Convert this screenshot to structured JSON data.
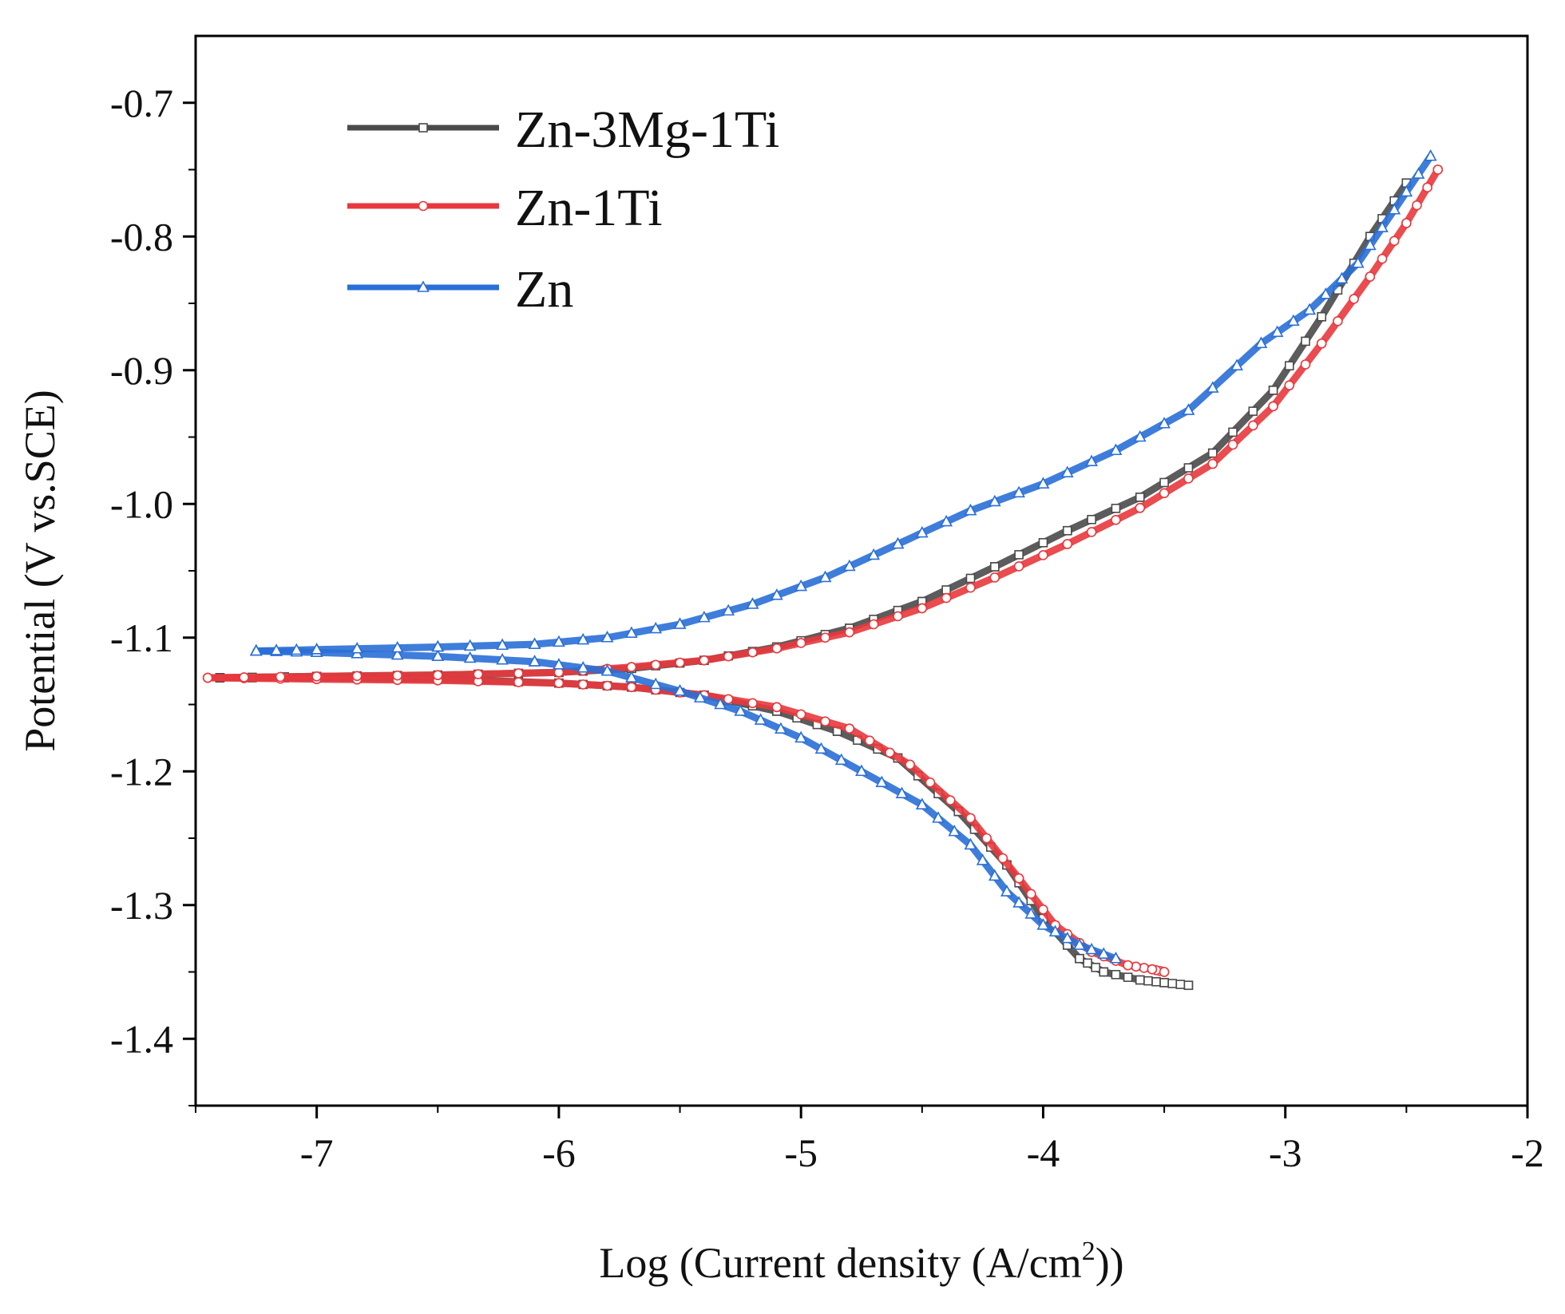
{
  "chart_data": {
    "type": "scatter",
    "xlabel_main": "Log (Current density  (A/cm",
    "xlabel_sup": "2",
    "xlabel_end": "))",
    "ylabel": "Potential (V vs.SCE)",
    "xlim": [
      -7.5,
      -2
    ],
    "ylim": [
      -1.45,
      -0.65
    ],
    "xticks": [
      -7,
      -6,
      -5,
      -4,
      -3,
      -2
    ],
    "xtick_labels": [
      "-7",
      "-6",
      "-5",
      "-4",
      "-3",
      "-2"
    ],
    "yticks": [
      -0.7,
      -0.8,
      -0.9,
      -1.0,
      -1.1,
      -1.2,
      -1.3,
      -1.4
    ],
    "ytick_labels": [
      "-0.7",
      "-0.8",
      "-0.9",
      "-1.0",
      "-1.1",
      "-1.2",
      "-1.3",
      "-1.4"
    ],
    "grid": false,
    "legend_position": "top-left",
    "series": [
      {
        "name": "Zn-3Mg-1Ti",
        "color": "#4a4a4a",
        "marker": "square",
        "cathodic": [
          [
            -3.4,
            -1.36
          ],
          [
            -3.5,
            -1.358
          ],
          [
            -3.6,
            -1.356
          ],
          [
            -3.75,
            -1.35
          ],
          [
            -3.85,
            -1.34
          ],
          [
            -4.0,
            -1.31
          ],
          [
            -4.15,
            -1.27
          ],
          [
            -4.35,
            -1.23
          ],
          [
            -4.6,
            -1.19
          ],
          [
            -4.85,
            -1.17
          ],
          [
            -5.1,
            -1.155
          ],
          [
            -5.4,
            -1.143
          ],
          [
            -5.7,
            -1.137
          ],
          [
            -6.0,
            -1.134
          ],
          [
            -6.5,
            -1.131
          ],
          [
            -7.0,
            -1.13
          ],
          [
            -7.4,
            -1.13
          ]
        ],
        "anodic": [
          [
            -7.4,
            -1.13
          ],
          [
            -7.0,
            -1.129
          ],
          [
            -6.5,
            -1.128
          ],
          [
            -6.0,
            -1.126
          ],
          [
            -5.7,
            -1.123
          ],
          [
            -5.4,
            -1.117
          ],
          [
            -5.1,
            -1.107
          ],
          [
            -4.8,
            -1.093
          ],
          [
            -4.5,
            -1.073
          ],
          [
            -4.2,
            -1.047
          ],
          [
            -3.9,
            -1.02
          ],
          [
            -3.6,
            -0.995
          ],
          [
            -3.3,
            -0.962
          ],
          [
            -3.05,
            -0.915
          ],
          [
            -2.85,
            -0.86
          ],
          [
            -2.65,
            -0.8
          ],
          [
            -2.5,
            -0.76
          ]
        ]
      },
      {
        "name": "Zn-1Ti",
        "color": "#e8383d",
        "marker": "circle",
        "cathodic": [
          [
            -3.5,
            -1.35
          ],
          [
            -3.55,
            -1.348
          ],
          [
            -3.65,
            -1.345
          ],
          [
            -3.8,
            -1.335
          ],
          [
            -3.95,
            -1.315
          ],
          [
            -4.1,
            -1.28
          ],
          [
            -4.3,
            -1.235
          ],
          [
            -4.55,
            -1.195
          ],
          [
            -4.8,
            -1.168
          ],
          [
            -5.1,
            -1.152
          ],
          [
            -5.4,
            -1.143
          ],
          [
            -5.7,
            -1.137
          ],
          [
            -6.0,
            -1.134
          ],
          [
            -6.5,
            -1.132
          ],
          [
            -7.0,
            -1.131
          ],
          [
            -7.45,
            -1.13
          ]
        ],
        "anodic": [
          [
            -7.45,
            -1.13
          ],
          [
            -7.0,
            -1.129
          ],
          [
            -6.5,
            -1.128
          ],
          [
            -6.0,
            -1.126
          ],
          [
            -5.7,
            -1.122
          ],
          [
            -5.4,
            -1.117
          ],
          [
            -5.1,
            -1.108
          ],
          [
            -4.8,
            -1.096
          ],
          [
            -4.5,
            -1.078
          ],
          [
            -4.2,
            -1.055
          ],
          [
            -3.9,
            -1.03
          ],
          [
            -3.6,
            -1.003
          ],
          [
            -3.3,
            -0.97
          ],
          [
            -3.05,
            -0.927
          ],
          [
            -2.85,
            -0.88
          ],
          [
            -2.65,
            -0.83
          ],
          [
            -2.5,
            -0.79
          ],
          [
            -2.37,
            -0.75
          ]
        ]
      },
      {
        "name": "Zn",
        "color": "#2a6fd6",
        "marker": "triangle",
        "cathodic": [
          [
            -3.7,
            -1.34
          ],
          [
            -3.85,
            -1.33
          ],
          [
            -4.0,
            -1.315
          ],
          [
            -4.15,
            -1.29
          ],
          [
            -4.3,
            -1.255
          ],
          [
            -4.5,
            -1.225
          ],
          [
            -4.75,
            -1.2
          ],
          [
            -5.0,
            -1.175
          ],
          [
            -5.25,
            -1.155
          ],
          [
            -5.5,
            -1.14
          ],
          [
            -5.8,
            -1.125
          ],
          [
            -6.1,
            -1.118
          ],
          [
            -6.5,
            -1.114
          ],
          [
            -7.0,
            -1.111
          ],
          [
            -7.25,
            -1.11
          ]
        ],
        "anodic": [
          [
            -7.25,
            -1.11
          ],
          [
            -7.0,
            -1.109
          ],
          [
            -6.5,
            -1.107
          ],
          [
            -6.1,
            -1.105
          ],
          [
            -5.8,
            -1.1
          ],
          [
            -5.5,
            -1.09
          ],
          [
            -5.2,
            -1.075
          ],
          [
            -4.9,
            -1.055
          ],
          [
            -4.6,
            -1.03
          ],
          [
            -4.3,
            -1.005
          ],
          [
            -4.0,
            -0.985
          ],
          [
            -3.7,
            -0.96
          ],
          [
            -3.4,
            -0.93
          ],
          [
            -3.1,
            -0.88
          ],
          [
            -2.9,
            -0.855
          ],
          [
            -2.7,
            -0.82
          ],
          [
            -2.55,
            -0.78
          ],
          [
            -2.4,
            -0.74
          ]
        ]
      }
    ]
  }
}
